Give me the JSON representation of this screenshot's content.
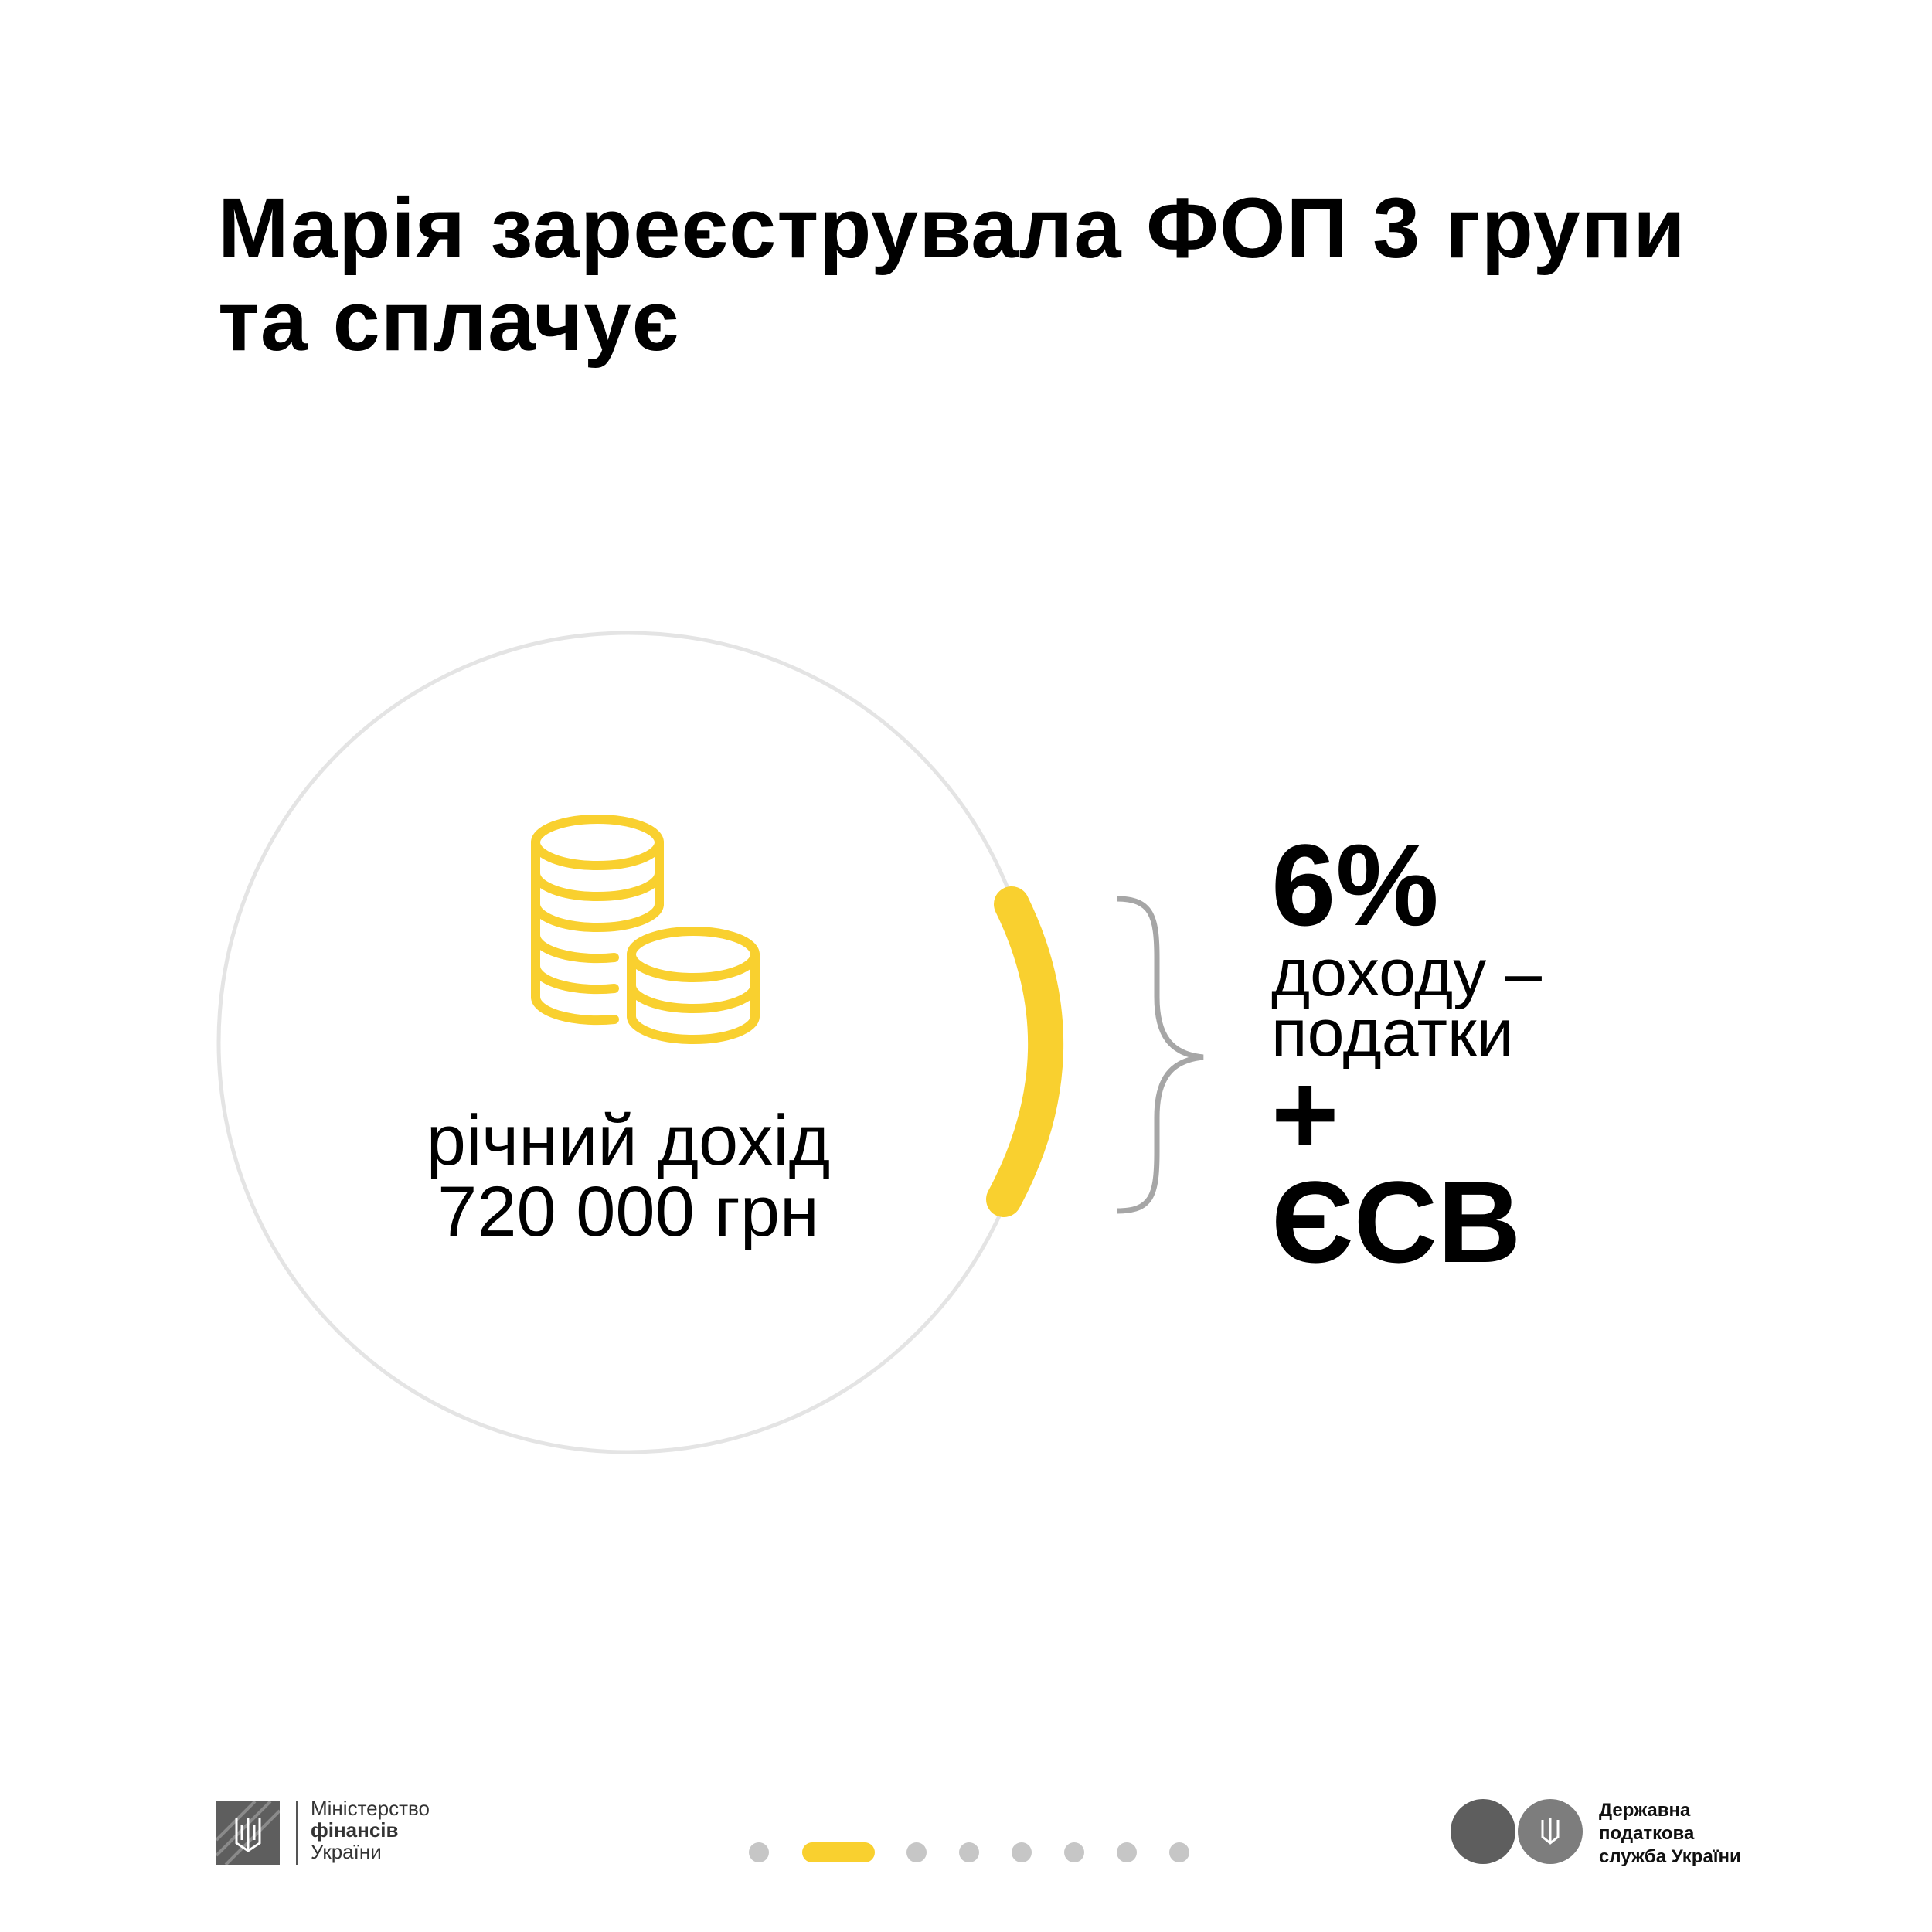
{
  "title": {
    "line1": "Марія зареєструвала ФОП 3 групи",
    "line2": "та сплачує"
  },
  "income": {
    "label": "річний дохід",
    "amount": "720 000 грн",
    "icon": "coins-stack-icon"
  },
  "taxes": {
    "percent": "6%",
    "line1": "доходу –",
    "line2": "податки",
    "plus": "+",
    "esv": "ЄСВ"
  },
  "colors": {
    "accent": "#f9d02f",
    "circle": "#e4e4e4",
    "brace": "#a6a6a6",
    "dot": "#c6c6c6",
    "logo_gray": "#5e5e5e"
  },
  "pagination": {
    "total": 8,
    "active": 2
  },
  "footer": {
    "minfin": {
      "line1": "Міністерство",
      "line2": "фінансів",
      "line3": "України"
    },
    "dps": {
      "line1": "Державна",
      "line2": "податкова",
      "line3": "служба України"
    }
  }
}
